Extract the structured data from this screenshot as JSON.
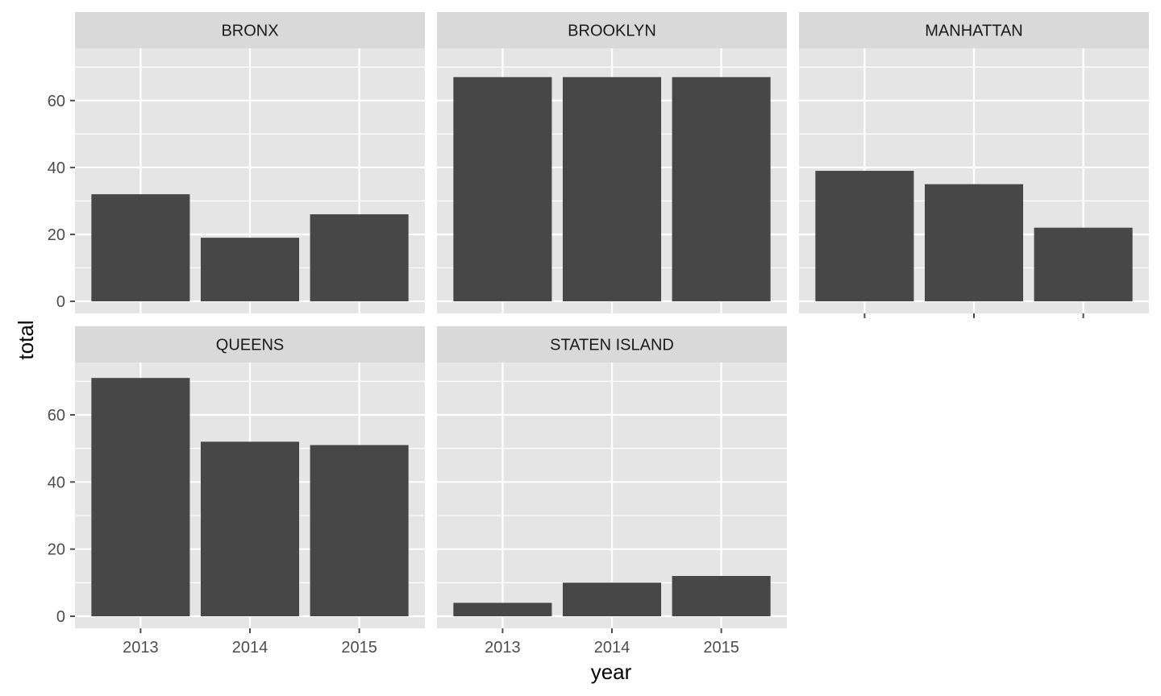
{
  "chart_data": {
    "type": "bar",
    "layout": "facet_wrap",
    "xlabel": "year",
    "ylabel": "total",
    "categories": [
      "2013",
      "2014",
      "2015"
    ],
    "ylim": [
      0,
      72
    ],
    "yticks": [
      0,
      20,
      40,
      60
    ],
    "grid": true,
    "bar_color": "#474747",
    "panel_background": "#e5e5e5",
    "strip_background": "#d9d9d9",
    "panels": [
      {
        "name": "BRONX",
        "values": [
          32,
          19,
          26
        ]
      },
      {
        "name": "BROOKLYN",
        "values": [
          67,
          67,
          67
        ]
      },
      {
        "name": "MANHATTAN",
        "values": [
          39,
          35,
          22
        ]
      },
      {
        "name": "QUEENS",
        "values": [
          71,
          52,
          51
        ]
      },
      {
        "name": "STATEN ISLAND",
        "values": [
          4,
          10,
          12
        ]
      }
    ]
  }
}
